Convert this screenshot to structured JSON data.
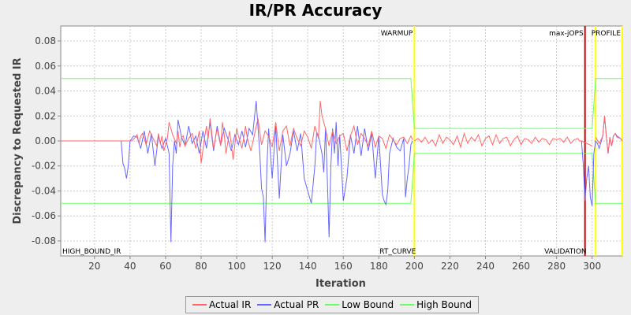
{
  "chart_data": {
    "type": "line",
    "title": "IR/PR Accuracy",
    "xlabel": "Iteration",
    "ylabel": "Discrepancy to Requested IR",
    "xlim": [
      1,
      317
    ],
    "ylim": [
      -0.092,
      0.092
    ],
    "x_ticks": [
      20,
      40,
      60,
      80,
      100,
      120,
      140,
      160,
      180,
      200,
      220,
      240,
      260,
      280,
      300
    ],
    "y_ticks": [
      -0.08,
      -0.06,
      -0.04,
      -0.02,
      0.0,
      0.02,
      0.04,
      0.06,
      0.08
    ],
    "y_tick_labels": [
      "-0.08",
      "-0.06",
      "-0.04",
      "-0.02",
      "0.00",
      "0.02",
      "0.04",
      "0.06",
      "0.08"
    ],
    "grid": true,
    "legend_position": "bottom-center",
    "series": [
      {
        "name": "Actual IR",
        "color": "#ff6666",
        "segments": [
          {
            "x": [
              1,
              35
            ],
            "y": [
              0,
              0
            ]
          },
          {
            "x": [
              35,
              38,
              41,
              43,
              44,
              45,
              46,
              47,
              48,
              49,
              51,
              53,
              55,
              56,
              57,
              58,
              59,
              61,
              62,
              64,
              66,
              67,
              68,
              69,
              70,
              71,
              73,
              75,
              77,
              79,
              80,
              82,
              83,
              84,
              85,
              87,
              89,
              91,
              92,
              93,
              94,
              96,
              98,
              100,
              101,
              103,
              105,
              106,
              108,
              110,
              112,
              114,
              116,
              118,
              120,
              122,
              124,
              126,
              128,
              130,
              132,
              134,
              136,
              138,
              140,
              142,
              144,
              146,
              147,
              148,
              150,
              152,
              154,
              156,
              158,
              160,
              162,
              164,
              166,
              168,
              170,
              172,
              174,
              176,
              178,
              180,
              182,
              184,
              186,
              188,
              190,
              192,
              194,
              196,
              198,
              199
            ],
            "y": [
              0,
              0,
              0,
              0.003,
              0.005,
              -0.002,
              0.004,
              0.006,
              0.002,
              -0.003,
              0.008,
              0.002,
              -0.004,
              0.006,
              -0.002,
              0.004,
              -0.008,
              0.002,
              0.015,
              0.005,
              -0.002,
              0.008,
              -0.005,
              0.003,
              0.004,
              -0.004,
              0.002,
              0.006,
              -0.006,
              0.008,
              -0.018,
              0.003,
              0.012,
              0.002,
              0.018,
              -0.006,
              0.01,
              -0.004,
              0.015,
              0.005,
              -0.01,
              0.008,
              -0.015,
              0.01,
              0.004,
              -0.006,
              0.012,
              0.002,
              -0.008,
              0.005,
              0.018,
              -0.003,
              0.008,
              0.004,
              -0.005,
              0.015,
              -0.008,
              0.008,
              0.012,
              -0.004,
              0.01,
              0.002,
              -0.004,
              0.008,
              0.003,
              -0.006,
              0.012,
              0.002,
              0.032,
              0.02,
              0.01,
              -0.004,
              0.008,
              -0.002,
              0.004,
              0.006,
              -0.008,
              0.004,
              0.012,
              -0.003,
              0.006,
              0.002,
              -0.004,
              0.008,
              -0.005,
              0.004,
              0.002,
              -0.006,
              0.005,
              0.001,
              -0.003,
              0.002,
              0.003,
              -0.002,
              0.004,
              0.001
            ]
          },
          {
            "x": [
              200,
              202,
              204,
              206,
              208,
              210,
              212,
              214,
              216,
              218,
              220,
              222,
              224,
              226,
              228,
              230,
              232,
              234,
              236,
              238,
              240,
              242,
              244,
              246,
              248,
              250,
              252,
              254,
              256,
              258,
              260,
              262,
              264,
              266,
              268,
              270,
              272,
              274,
              276,
              278,
              280,
              282,
              284,
              286,
              288,
              290,
              292,
              293,
              294
            ],
            "y": [
              0,
              0.002,
              -0.001,
              0.003,
              -0.002,
              0.001,
              -0.004,
              0.005,
              -0.002,
              0.003,
              0.001,
              -0.003,
              0.004,
              -0.005,
              0.006,
              -0.002,
              0.003,
              0,
              0.005,
              -0.004,
              0.002,
              0.004,
              -0.003,
              0.005,
              -0.002,
              0.002,
              0.003,
              -0.004,
              0.001,
              0.004,
              -0.003,
              0.002,
              0.001,
              -0.002,
              0.003,
              -0.001,
              0.002,
              0.001,
              -0.003,
              0.002,
              0.001,
              0.002,
              -0.001,
              0.003,
              -0.002,
              0.001,
              0.002,
              0,
              0
            ]
          },
          {
            "x": [
              294,
              300
            ],
            "y": [
              0,
              -0.004
            ]
          },
          {
            "x": [
              302,
              304,
              306,
              307,
              308,
              309,
              310,
              311,
              312,
              313,
              314,
              316,
              317
            ],
            "y": [
              0.003,
              -0.002,
              0.004,
              0.02,
              0.004,
              -0.01,
              0.003,
              -0.004,
              0.004,
              0.006,
              0.003,
              0.002,
              0
            ]
          }
        ]
      },
      {
        "name": "Actual PR",
        "color": "#6666ff",
        "segments": [
          {
            "x": [
              35,
              36,
              37,
              38,
              39,
              40,
              42,
              44,
              46,
              48,
              50,
              52,
              54,
              56,
              58,
              60,
              61,
              62,
              63,
              64,
              65,
              66,
              67,
              69,
              71,
              73,
              75,
              77,
              79,
              81,
              83,
              85,
              87,
              89,
              91,
              93,
              95,
              97,
              99,
              101,
              103,
              105,
              107,
              109,
              111,
              113,
              114,
              115,
              116,
              117,
              118,
              120,
              122,
              124,
              126,
              128,
              130,
              132,
              134,
              136,
              138,
              140,
              142,
              144,
              145,
              146,
              148,
              149,
              150,
              151,
              152,
              153,
              154,
              155,
              156,
              157,
              158,
              160,
              162,
              164,
              166,
              168,
              170,
              172,
              174,
              176,
              178,
              180,
              182,
              183,
              184,
              185,
              186,
              188,
              190,
              192,
              194,
              195,
              196,
              197,
              198,
              199
            ],
            "y": [
              0,
              -0.018,
              -0.022,
              -0.03,
              -0.02,
              0,
              0.004,
              0.003,
              -0.006,
              0.008,
              -0.01,
              0.006,
              -0.02,
              0.004,
              -0.006,
              0.002,
              -0.004,
              -0.01,
              -0.081,
              -0.02,
              0,
              -0.01,
              0.017,
              0.003,
              -0.004,
              0.012,
              -0.002,
              0.004,
              -0.01,
              0.008,
              -0.006,
              0.015,
              -0.008,
              0.012,
              -0.003,
              0.01,
              0.002,
              -0.008,
              0.005,
              -0.003,
              0.008,
              -0.005,
              0.01,
              0.005,
              0.032,
              -0.01,
              -0.038,
              -0.045,
              -0.081,
              -0.02,
              0.01,
              -0.03,
              0.012,
              -0.046,
              0.005,
              -0.02,
              -0.01,
              0.008,
              -0.008,
              0.006,
              -0.03,
              -0.04,
              -0.05,
              -0.02,
              0.007,
              0.004,
              -0.01,
              -0.025,
              0.01,
              -0.03,
              -0.077,
              -0.02,
              0.01,
              -0.01,
              0.015,
              -0.02,
              0.005,
              -0.048,
              -0.03,
              0.005,
              -0.01,
              0.012,
              -0.012,
              0.01,
              -0.008,
              0.006,
              -0.03,
              0.004,
              -0.043,
              -0.048,
              -0.051,
              -0.04,
              -0.01,
              0.002,
              -0.005,
              -0.008,
              0.002,
              -0.045,
              -0.03,
              -0.02,
              -0.003,
              0
            ]
          },
          {
            "x": [
              294,
              295,
              296,
              297,
              298,
              299,
              300,
              301,
              302,
              303,
              304,
              306,
              307,
              308,
              309,
              310,
              311,
              312,
              313,
              314,
              316,
              317
            ],
            "y": [
              0,
              -0.018,
              -0.048,
              -0.03,
              -0.02,
              -0.045,
              -0.052,
              -0.01,
              0,
              -0.002,
              -0.006,
              0.004,
              0.02,
              0.004,
              -0.01,
              0.003,
              -0.004,
              0.004,
              0.006,
              0.004,
              0.002,
              0
            ]
          }
        ]
      },
      {
        "name": "Low Bound",
        "color": "#66ff66",
        "x": [
          1,
          198,
          200,
          296,
          300,
          302,
          317
        ],
        "y": [
          -0.05,
          -0.05,
          -0.01,
          -0.01,
          -0.01,
          -0.05,
          -0.05
        ]
      },
      {
        "name": "High Bound",
        "color": "#66ff66",
        "x": [
          1,
          198,
          200,
          296,
          300,
          302,
          317
        ],
        "y": [
          0.05,
          0.05,
          0.01,
          0.01,
          0.01,
          0.05,
          0.05
        ]
      }
    ],
    "markers": [
      {
        "x": 200,
        "label_top": "WARMUP",
        "label_bottom": "RT_CURVE",
        "color": "#ffff00"
      },
      {
        "x": 296,
        "label_top": "max-jOPS",
        "label_bottom": "VALIDATION",
        "color": "#cc0000"
      },
      {
        "x": 302,
        "label_top": "",
        "label_bottom": "",
        "color": "#ffff00"
      },
      {
        "x": 317,
        "label_top": "PROFILE",
        "label_bottom": "",
        "color": "#ffff00"
      }
    ],
    "corner_label": "HIGH_BOUND_IR"
  },
  "legend": [
    {
      "label": "Actual IR",
      "color": "#ff6666"
    },
    {
      "label": "Actual PR",
      "color": "#6666ff"
    },
    {
      "label": "Low Bound",
      "color": "#66ff66"
    },
    {
      "label": "High Bound",
      "color": "#66ff66"
    }
  ]
}
